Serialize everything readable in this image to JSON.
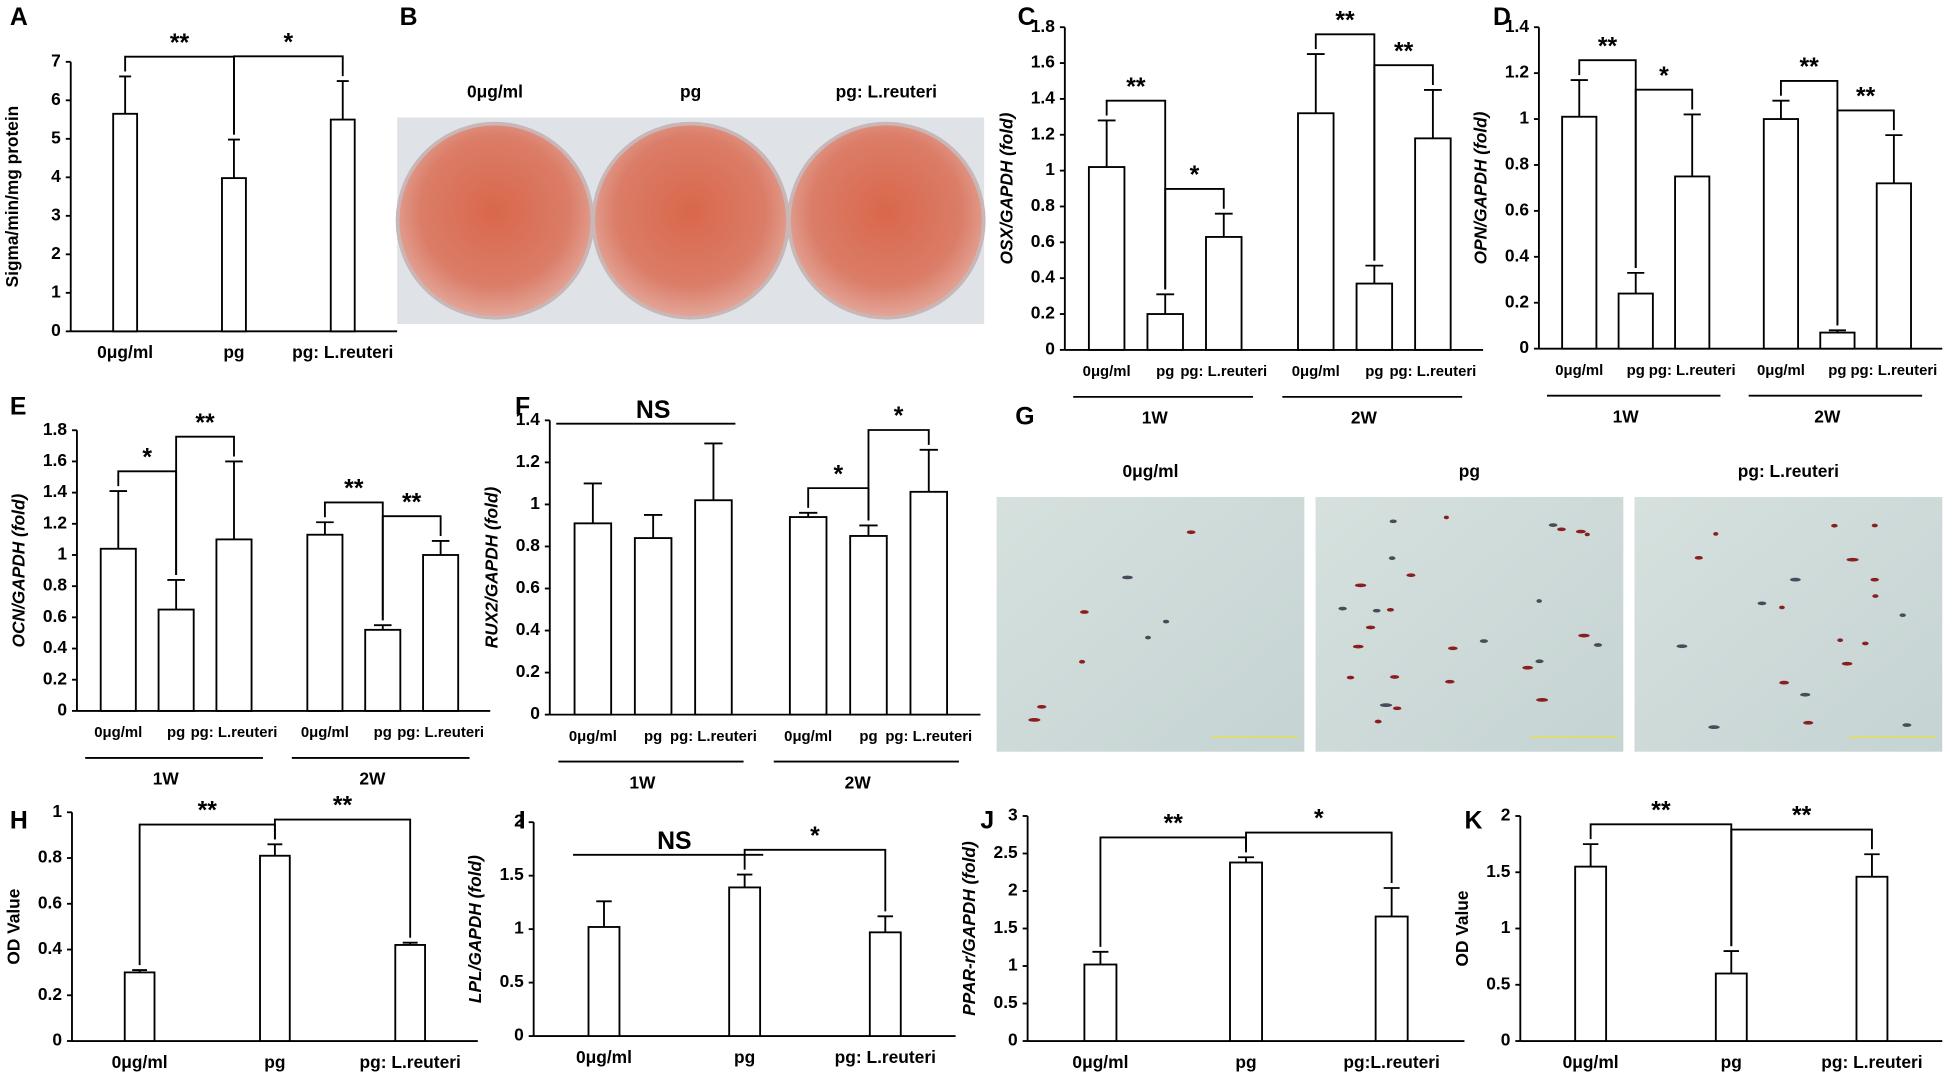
{
  "chart_data": [
    {
      "type": "bar",
      "panel": "A",
      "ylabel": "Sigma/min/mg protein",
      "categories": [
        "0μg/ml",
        "pg",
        "pg: L.reuteri"
      ],
      "values": [
        5.65,
        3.98,
        5.5
      ],
      "errors": [
        0.97,
        1.0,
        1.0
      ],
      "ylim": [
        0,
        7
      ],
      "yticks": [
        0,
        1,
        2,
        3,
        4,
        5,
        6,
        7
      ],
      "annotations": [
        "**",
        "*"
      ]
    },
    {
      "type": "image",
      "panel": "B",
      "labels": [
        "0μg/ml",
        "pg",
        "pg: L.reuteri"
      ]
    },
    {
      "type": "bar",
      "panel": "C",
      "ylabel": "OSX/GAPDH (fold)",
      "categories": [
        "0μg/ml",
        "pg",
        "pg: L.reuteri",
        "0μg/ml",
        "pg",
        "pg: L.reuteri"
      ],
      "groups": [
        "1W",
        "2W"
      ],
      "values": [
        1.02,
        0.2,
        0.63,
        1.32,
        0.37,
        1.18
      ],
      "errors": [
        0.26,
        0.11,
        0.13,
        0.33,
        0.1,
        0.27
      ],
      "ylim": [
        0,
        1.8
      ],
      "yticks": [
        0,
        0.2,
        0.4,
        0.6,
        0.8,
        1,
        1.2,
        1.4,
        1.6,
        1.8
      ],
      "annotations": [
        "**",
        "*",
        "**",
        "**"
      ]
    },
    {
      "type": "bar",
      "panel": "D",
      "ylabel": "OPN/GAPDH (fold)",
      "categories": [
        "0μg/ml",
        "pg",
        "pg: L.reuteri",
        "0μg/ml",
        "pg",
        "pg: L.reuteri"
      ],
      "groups": [
        "1W",
        "2W"
      ],
      "values": [
        1.01,
        0.24,
        0.75,
        1.0,
        0.07,
        0.72
      ],
      "errors": [
        0.16,
        0.09,
        0.27,
        0.08,
        0.01,
        0.21
      ],
      "ylim": [
        0,
        1.4
      ],
      "yticks": [
        0,
        0.2,
        0.4,
        0.6,
        0.8,
        1,
        1.2,
        1.4
      ],
      "annotations": [
        "**",
        "*",
        "**",
        "**"
      ]
    },
    {
      "type": "bar",
      "panel": "E",
      "ylabel": "OCN/GAPDH (fold)",
      "categories": [
        "0μg/ml",
        "pg",
        "pg: L.reuteri",
        "0μg/ml",
        "pg",
        "pg: L.reuteri"
      ],
      "groups": [
        "1W",
        "2W"
      ],
      "values": [
        1.04,
        0.65,
        1.1,
        1.13,
        0.52,
        1.0
      ],
      "errors": [
        0.37,
        0.19,
        0.5,
        0.08,
        0.03,
        0.09
      ],
      "ylim": [
        0,
        1.8
      ],
      "yticks": [
        0,
        0.2,
        0.4,
        0.6,
        0.8,
        1,
        1.2,
        1.4,
        1.6,
        1.8
      ],
      "annotations": [
        "*",
        "**",
        "**",
        "**"
      ]
    },
    {
      "type": "bar",
      "panel": "F",
      "ylabel": "RUX2/GAPDH (fold)",
      "categories": [
        "0μg/ml",
        "pg",
        "pg: L.reuteri",
        "0μg/ml",
        "pg",
        "pg: L.reuteri"
      ],
      "groups": [
        "1W",
        "2W"
      ],
      "values": [
        0.91,
        0.84,
        1.02,
        0.94,
        0.85,
        1.06
      ],
      "errors": [
        0.19,
        0.11,
        0.27,
        0.02,
        0.05,
        0.2
      ],
      "ylim": [
        0,
        1.4
      ],
      "yticks": [
        0,
        0.2,
        0.4,
        0.6,
        0.8,
        1,
        1.2,
        1.4
      ],
      "annotations": [
        "NS",
        "*",
        "*"
      ]
    },
    {
      "type": "image",
      "panel": "G",
      "labels": [
        "0μg/ml",
        "pg",
        "pg: L.reuteri"
      ]
    },
    {
      "type": "bar",
      "panel": "H",
      "ylabel": "OD Value",
      "categories": [
        "0μg/ml",
        "pg",
        "pg: L.reuteri"
      ],
      "values": [
        0.3,
        0.81,
        0.42
      ],
      "errors": [
        0.01,
        0.05,
        0.01
      ],
      "ylim": [
        0,
        1
      ],
      "yticks": [
        0,
        0.2,
        0.4,
        0.6,
        0.8,
        1
      ],
      "annotations": [
        "**",
        "**"
      ]
    },
    {
      "type": "bar",
      "panel": "I",
      "ylabel": "LPL/GAPDH (fold)",
      "categories": [
        "0μg/ml",
        "pg",
        "pg: L.reuteri"
      ],
      "values": [
        1.02,
        1.39,
        0.97
      ],
      "errors": [
        0.24,
        0.12,
        0.15
      ],
      "ylim": [
        0,
        2
      ],
      "yticks": [
        0,
        0.5,
        1,
        1.5,
        2
      ],
      "annotations": [
        "NS",
        "*"
      ]
    },
    {
      "type": "bar",
      "panel": "J",
      "ylabel": "PPAR-r/GAPDH (fold)",
      "categories": [
        "0μg/ml",
        "pg",
        "pg:L.reuteri"
      ],
      "values": [
        1.02,
        2.38,
        1.66
      ],
      "errors": [
        0.17,
        0.07,
        0.38
      ],
      "ylim": [
        0,
        3
      ],
      "yticks": [
        0,
        0.5,
        1,
        1.5,
        2,
        2.5,
        3
      ],
      "annotations": [
        "**",
        "*"
      ]
    },
    {
      "type": "bar",
      "panel": "K",
      "ylabel": "OD Value",
      "categories": [
        "0μg/ml",
        "pg",
        "pg: L.reuteri"
      ],
      "values": [
        1.55,
        0.6,
        1.46
      ],
      "errors": [
        0.2,
        0.2,
        0.2
      ],
      "ylim": [
        0,
        2
      ],
      "yticks": [
        0,
        0.5,
        1,
        1.5,
        2
      ],
      "annotations": [
        "**",
        "**"
      ]
    }
  ]
}
